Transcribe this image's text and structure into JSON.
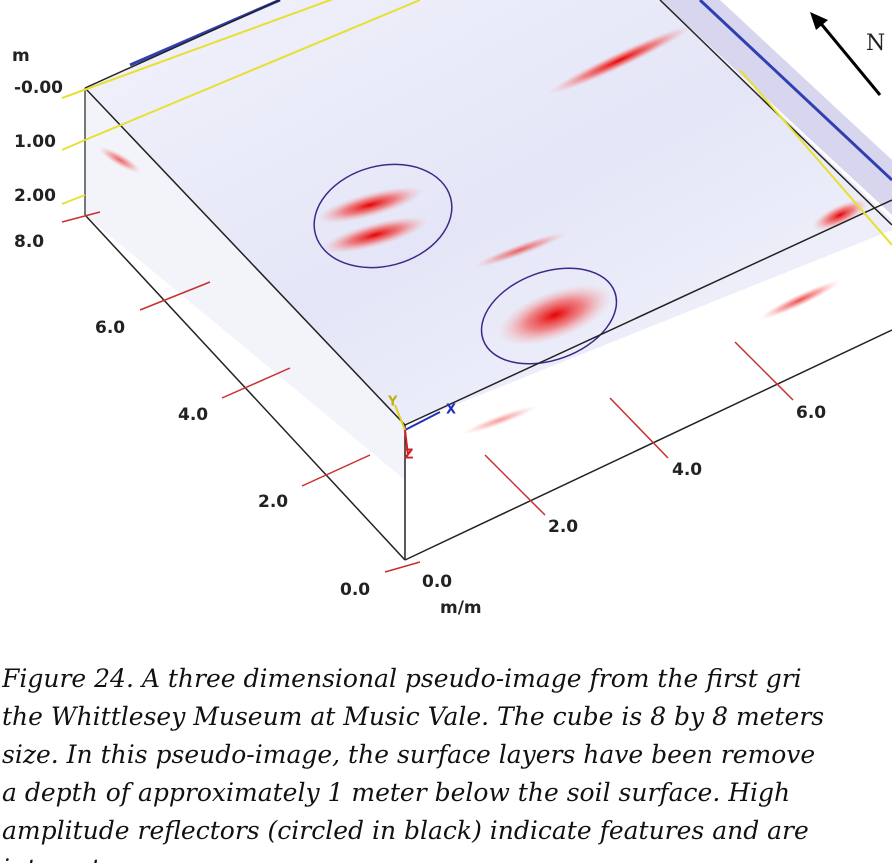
{
  "figure": {
    "depth_unit": "m",
    "depth_labels": [
      "-0.00",
      "1.00",
      "2.00"
    ],
    "left_axis_labels": [
      "8.0",
      "6.0",
      "4.0",
      "2.0",
      "0.0"
    ],
    "front_axis_labels": [
      "0.0",
      "2.0",
      "4.0",
      "6.0"
    ],
    "front_axis_unit": "m/m",
    "north": "N",
    "axis_x": "X",
    "axis_y": "Y",
    "axis_z": "Z"
  },
  "caption": {
    "lines": [
      "Figure 24. A three dimensional pseudo-image from the first gri",
      "the Whittlesey Museum at Music Vale. The cube is 8 by 8 meters",
      "size. In this pseudo-image, the surface layers have been remove",
      "a depth of approximately 1 meter below the soil surface. High",
      "amplitude reflectors (circled in black) indicate features and are",
      "interest"
    ]
  }
}
